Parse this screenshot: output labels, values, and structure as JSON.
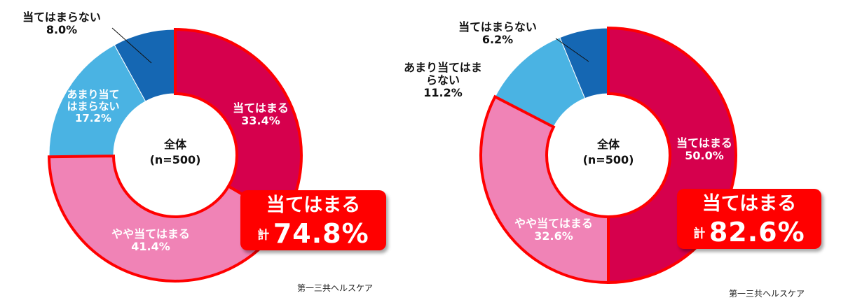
{
  "chart_data": [
    {
      "type": "pie",
      "center_label": [
        "全体",
        "(n=500)"
      ],
      "slices": [
        {
          "label": "当てはまる",
          "value": 33.4,
          "value_label": "33.4%",
          "color": "#d6004d"
        },
        {
          "label": "やや当てはまる",
          "value": 41.4,
          "value_label": "41.4%",
          "color": "#f083b6"
        },
        {
          "label": "あまり当てはまらない",
          "value": 17.2,
          "value_label": "17.2%",
          "color": "#4ab3e3"
        },
        {
          "label": "当てはまらない",
          "value": 8.0,
          "value_label": "8.0%",
          "color": "#1567b3"
        }
      ],
      "highlight": {
        "title": "当てはまる",
        "prefix": "計",
        "value": "74.8%"
      },
      "source": "第一三共ヘルスケア"
    },
    {
      "type": "pie",
      "center_label": [
        "全体",
        "(n=500)"
      ],
      "slices": [
        {
          "label": "当てはまる",
          "value": 50.0,
          "value_label": "50.0%",
          "color": "#d6004d"
        },
        {
          "label": "やや当てはまる",
          "value": 32.6,
          "value_label": "32.6%",
          "color": "#f083b6"
        },
        {
          "label": "あまり当てはまらない",
          "value": 11.2,
          "value_label": "11.2%",
          "color": "#4ab3e3"
        },
        {
          "label": "当てはまらない",
          "value": 6.2,
          "value_label": "6.2%",
          "color": "#1567b3"
        }
      ],
      "highlight": {
        "title": "当てはまる",
        "prefix": "計",
        "value": "82.6%"
      },
      "source": "第一三共ヘルスケア"
    }
  ]
}
